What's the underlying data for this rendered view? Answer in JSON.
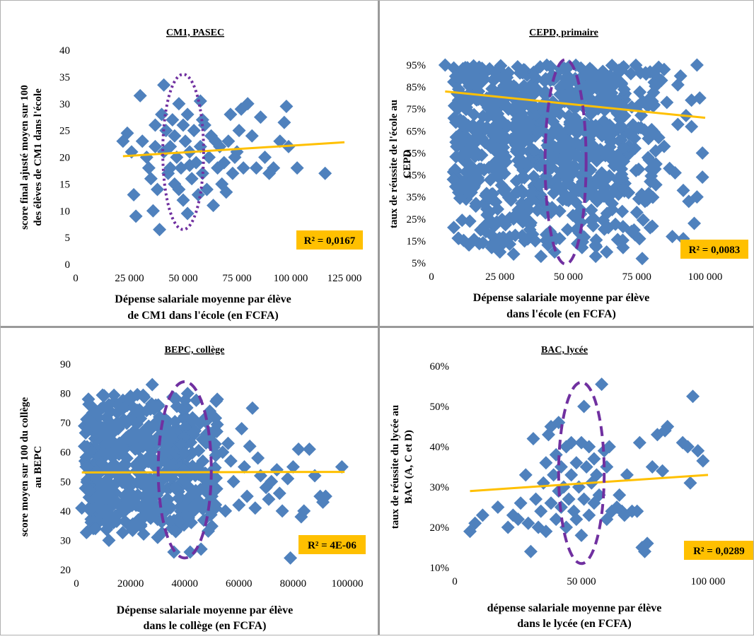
{
  "chart_data": [
    {
      "type": "scatter",
      "title": "CM1, PASEC",
      "ylabel_lines": [
        "score final ajusté moyen sur 100",
        "des élèves de CM1 dans l'école"
      ],
      "xlabel_lines": [
        "Dépense salariale moyenne par élève",
        "de CM1 dans l'école (en FCFA)"
      ],
      "xlim": [
        0,
        125000
      ],
      "ylim": [
        0,
        40
      ],
      "xticks": [
        0,
        25000,
        50000,
        75000,
        100000,
        125000
      ],
      "xtick_labels": [
        "0",
        "25 000",
        "50 000",
        "75 000",
        "100 000",
        "125 000"
      ],
      "yticks": [
        0,
        5,
        10,
        15,
        20,
        25,
        30,
        35,
        40
      ],
      "ytick_labels": [
        "0",
        "5",
        "10",
        "15",
        "20",
        "25",
        "30",
        "35",
        "40"
      ],
      "r2_label": "R² = 0,0167",
      "trendline": {
        "x": [
          22000,
          125000
        ],
        "y": [
          20.2,
          22.8
        ]
      },
      "ellipse": {
        "cx": 50000,
        "cy": 21,
        "rx": 9500,
        "ry": 14.5,
        "style": "dotted"
      },
      "marker_color": "#4f81bd",
      "trend_color": "#ffc000",
      "ellipse_color": "#7030a0",
      "points": [
        [
          22000,
          23
        ],
        [
          24000,
          24.5
        ],
        [
          26000,
          21
        ],
        [
          27000,
          13
        ],
        [
          28000,
          9
        ],
        [
          30000,
          31.5
        ],
        [
          31000,
          23
        ],
        [
          33000,
          20
        ],
        [
          34000,
          18
        ],
        [
          36000,
          10
        ],
        [
          37000,
          26
        ],
        [
          38000,
          14
        ],
        [
          39000,
          6.5
        ],
        [
          40000,
          28
        ],
        [
          41000,
          21
        ],
        [
          41000,
          33.5
        ],
        [
          42000,
          25
        ],
        [
          43000,
          17
        ],
        [
          44000,
          22
        ],
        [
          45000,
          27
        ],
        [
          46000,
          15
        ],
        [
          46000,
          24
        ],
        [
          47000,
          20
        ],
        [
          48000,
          30
        ],
        [
          49000,
          18
        ],
        [
          50000,
          26
        ],
        [
          50000,
          12
        ],
        [
          51000,
          23
        ],
        [
          52000,
          9.5
        ],
        [
          52000,
          28
        ],
        [
          53000,
          21
        ],
        [
          54000,
          16
        ],
        [
          55000,
          25
        ],
        [
          56000,
          19
        ],
        [
          57000,
          13
        ],
        [
          58000,
          30.5
        ],
        [
          58000,
          22
        ],
        [
          59000,
          17
        ],
        [
          60000,
          26
        ],
        [
          61000,
          14
        ],
        [
          62000,
          20
        ],
        [
          63000,
          24
        ],
        [
          64000,
          11
        ],
        [
          66000,
          18
        ],
        [
          67000,
          22
        ],
        [
          68000,
          15
        ],
        [
          69000,
          19
        ],
        [
          70000,
          13.5
        ],
        [
          71000,
          23
        ],
        [
          72000,
          28
        ],
        [
          73000,
          17
        ],
        [
          75000,
          21
        ],
        [
          76000,
          25
        ],
        [
          77000,
          29
        ],
        [
          78000,
          18
        ],
        [
          80000,
          30
        ],
        [
          82000,
          24
        ],
        [
          84000,
          18
        ],
        [
          86000,
          27.5
        ],
        [
          88000,
          20
        ],
        [
          90000,
          17
        ],
        [
          92000,
          18
        ],
        [
          95000,
          23
        ],
        [
          97000,
          26.5
        ],
        [
          98000,
          29.5
        ],
        [
          99000,
          22
        ],
        [
          103000,
          18
        ],
        [
          116000,
          17
        ],
        [
          35000,
          16
        ],
        [
          37000,
          22
        ],
        [
          44000,
          18
        ],
        [
          48000,
          14
        ],
        [
          53000,
          18.5
        ],
        [
          59000,
          27
        ],
        [
          65000,
          23
        ],
        [
          74000,
          20
        ]
      ]
    },
    {
      "type": "scatter",
      "title": "CEPD, primaire",
      "ylabel_lines": [
        "taux de réussite de l'école  au",
        "CEPD"
      ],
      "xlabel_lines": [
        "Dépense salariale moyenne par élève",
        "dans l'école  (en FCFA)"
      ],
      "xlim": [
        0,
        100000
      ],
      "ylim": [
        0.05,
        0.95
      ],
      "xticks": [
        0,
        25000,
        50000,
        75000,
        100000
      ],
      "xtick_labels": [
        "0",
        "25 000",
        "50 000",
        "75 000",
        "100 000"
      ],
      "yticks": [
        0.05,
        0.15,
        0.25,
        0.35,
        0.45,
        0.55,
        0.65,
        0.75,
        0.85,
        0.95
      ],
      "ytick_labels": [
        "5%",
        "15%",
        "25%",
        "35%",
        "45%",
        "55%",
        "65%",
        "75%",
        "85%",
        "95%"
      ],
      "r2_label": "R² = 0,0083",
      "trendline": {
        "x": [
          5000,
          100000
        ],
        "y": [
          0.83,
          0.71
        ]
      },
      "ellipse": {
        "cx": 49000,
        "cy": 0.51,
        "rx": 7500,
        "ry": 0.465,
        "style": "dashed"
      },
      "marker_color": "#4f81bd",
      "trend_color": "#ffc000",
      "ellipse_color": "#7030a0",
      "dense_region": {
        "x": [
          8000,
          82000
        ],
        "y": [
          0.12,
          0.95
        ]
      },
      "points": [
        [
          5000,
          0.95
        ],
        [
          8000,
          0.43
        ],
        [
          12000,
          0.55
        ],
        [
          14000,
          0.24
        ],
        [
          18000,
          0.2
        ],
        [
          22000,
          0.12
        ],
        [
          25000,
          0.1
        ],
        [
          30000,
          0.09
        ],
        [
          34000,
          0.15
        ],
        [
          40000,
          0.08
        ],
        [
          45000,
          0.1
        ],
        [
          55000,
          0.12
        ],
        [
          60000,
          0.08
        ],
        [
          64000,
          0.1
        ],
        [
          66000,
          0.32
        ],
        [
          68000,
          0.43
        ],
        [
          70000,
          0.12
        ],
        [
          72000,
          0.37
        ],
        [
          74000,
          0.2
        ],
        [
          75000,
          0.28
        ],
        [
          76000,
          0.16
        ],
        [
          77000,
          0.07
        ],
        [
          78000,
          0.33
        ],
        [
          80000,
          0.42
        ],
        [
          82000,
          0.5
        ],
        [
          83000,
          0.94
        ],
        [
          84000,
          0.88
        ],
        [
          85000,
          0.93
        ],
        [
          86000,
          0.78
        ],
        [
          87000,
          0.48
        ],
        [
          88000,
          0.17
        ],
        [
          89000,
          0.46
        ],
        [
          90000,
          0.68
        ],
        [
          90000,
          0.86
        ],
        [
          91000,
          0.9
        ],
        [
          92000,
          0.16
        ],
        [
          93000,
          0.72
        ],
        [
          94000,
          0.33
        ],
        [
          95000,
          0.79
        ],
        [
          96000,
          0.23
        ],
        [
          97000,
          0.95
        ],
        [
          98000,
          0.8
        ],
        [
          99000,
          0.55
        ],
        [
          99000,
          0.44
        ],
        [
          97000,
          0.35
        ],
        [
          95000,
          0.67
        ],
        [
          92000,
          0.38
        ],
        [
          85000,
          0.58
        ],
        [
          83000,
          0.62
        ]
      ]
    },
    {
      "type": "scatter",
      "title": "BEPC, collège",
      "ylabel_lines": [
        "score moyen sur 100 du collège",
        "au BEPC"
      ],
      "xlabel_lines": [
        "Dépense salariale moyenne par élève",
        "dans le collège (en FCFA)"
      ],
      "xlim": [
        0,
        100000
      ],
      "ylim": [
        20,
        90
      ],
      "xticks": [
        0,
        20000,
        40000,
        60000,
        80000,
        100000
      ],
      "xtick_labels": [
        "0",
        "20000",
        "40000",
        "60000",
        "80000",
        "100000"
      ],
      "yticks": [
        20,
        30,
        40,
        50,
        60,
        70,
        80,
        90
      ],
      "ytick_labels": [
        "20",
        "30",
        "40",
        "50",
        "60",
        "70",
        "80",
        "90"
      ],
      "r2_label": "R² = 4E-06",
      "trendline": {
        "x": [
          2000,
          99000
        ],
        "y": [
          53.1,
          53.3
        ]
      },
      "ellipse": {
        "cx": 40000,
        "cy": 54,
        "rx": 9800,
        "ry": 30,
        "style": "dashed"
      },
      "marker_color": "#4f81bd",
      "trend_color": "#ffc000",
      "ellipse_color": "#7030a0",
      "dense_region": {
        "x": [
          3000,
          52000
        ],
        "y": [
          32,
          80
        ]
      },
      "points": [
        [
          2000,
          41
        ],
        [
          3000,
          62
        ],
        [
          4000,
          55
        ],
        [
          5000,
          47
        ],
        [
          7000,
          34
        ],
        [
          8000,
          68
        ],
        [
          12000,
          30
        ],
        [
          15000,
          70
        ],
        [
          20000,
          78
        ],
        [
          28000,
          83
        ],
        [
          30000,
          31
        ],
        [
          36000,
          26
        ],
        [
          42000,
          26
        ],
        [
          46000,
          27
        ],
        [
          48000,
          72
        ],
        [
          50000,
          45
        ],
        [
          52000,
          78
        ],
        [
          54000,
          60
        ],
        [
          55000,
          40
        ],
        [
          56000,
          63
        ],
        [
          58000,
          50
        ],
        [
          60000,
          42
        ],
        [
          61000,
          68
        ],
        [
          62000,
          55
        ],
        [
          63000,
          45
        ],
        [
          64000,
          62
        ],
        [
          65000,
          75
        ],
        [
          66000,
          41
        ],
        [
          68000,
          52
        ],
        [
          70000,
          48
        ],
        [
          72000,
          50
        ],
        [
          74000,
          54
        ],
        [
          75000,
          46
        ],
        [
          76000,
          40
        ],
        [
          78000,
          51
        ],
        [
          79000,
          24
        ],
        [
          80000,
          55
        ],
        [
          82000,
          61
        ],
        [
          83000,
          38
        ],
        [
          84000,
          40
        ],
        [
          86000,
          61
        ],
        [
          88000,
          52
        ],
        [
          90000,
          45
        ],
        [
          91000,
          43
        ],
        [
          92000,
          45
        ],
        [
          98000,
          55
        ],
        [
          57000,
          57
        ],
        [
          67000,
          58
        ],
        [
          71000,
          44
        ]
      ]
    },
    {
      "type": "scatter",
      "title": "BAC, lycée",
      "ylabel_lines": [
        "taux de réussite du lycée au",
        "BAC (A,  C et D)"
      ],
      "xlabel_lines": [
        "dépense salariale moyenne par élève",
        "dans le lycée (en FCFA)"
      ],
      "xlim": [
        0,
        100000
      ],
      "ylim": [
        0.1,
        0.6
      ],
      "xticks": [
        0,
        50000,
        100000
      ],
      "xtick_labels": [
        "0",
        "50 000",
        "100 000"
      ],
      "yticks": [
        0.1,
        0.2,
        0.3,
        0.4,
        0.5,
        0.6
      ],
      "ytick_labels": [
        "10%",
        "20%",
        "30%",
        "40%",
        "50%",
        "60%"
      ],
      "r2_label": "R² = 0,0289",
      "trendline": {
        "x": [
          6000,
          100000
        ],
        "y": [
          0.29,
          0.33
        ]
      },
      "ellipse": {
        "cx": 50000,
        "cy": 0.335,
        "rx": 9000,
        "ry": 0.225,
        "style": "dashed"
      },
      "marker_color": "#4f81bd",
      "trend_color": "#ffc000",
      "ellipse_color": "#7030a0",
      "points": [
        [
          6000,
          0.19
        ],
        [
          8000,
          0.21
        ],
        [
          11000,
          0.23
        ],
        [
          17000,
          0.25
        ],
        [
          21000,
          0.2
        ],
        [
          23000,
          0.23
        ],
        [
          25000,
          0.22
        ],
        [
          26000,
          0.26
        ],
        [
          28000,
          0.33
        ],
        [
          29000,
          0.21
        ],
        [
          30000,
          0.14
        ],
        [
          31000,
          0.42
        ],
        [
          32000,
          0.27
        ],
        [
          33000,
          0.2
        ],
        [
          34000,
          0.24
        ],
        [
          35000,
          0.31
        ],
        [
          36000,
          0.36
        ],
        [
          36000,
          0.19
        ],
        [
          37000,
          0.43
        ],
        [
          38000,
          0.26
        ],
        [
          38000,
          0.45
        ],
        [
          39000,
          0.33
        ],
        [
          40000,
          0.22
        ],
        [
          40000,
          0.38
        ],
        [
          41000,
          0.29
        ],
        [
          41000,
          0.46
        ],
        [
          42000,
          0.25
        ],
        [
          42000,
          0.35
        ],
        [
          43000,
          0.3
        ],
        [
          44000,
          0.2
        ],
        [
          44000,
          0.4
        ],
        [
          45000,
          0.27
        ],
        [
          46000,
          0.33
        ],
        [
          46000,
          0.41
        ],
        [
          47000,
          0.24
        ],
        [
          48000,
          0.36
        ],
        [
          48000,
          0.22
        ],
        [
          49000,
          0.3
        ],
        [
          50000,
          0.41
        ],
        [
          50000,
          0.18
        ],
        [
          51000,
          0.5
        ],
        [
          51000,
          0.27
        ],
        [
          52000,
          0.35
        ],
        [
          53000,
          0.23
        ],
        [
          53000,
          0.4
        ],
        [
          54000,
          0.31
        ],
        [
          55000,
          0.37
        ],
        [
          55000,
          0.26
        ],
        [
          56000,
          0.33
        ],
        [
          57000,
          0.28
        ],
        [
          58000,
          0.555
        ],
        [
          59000,
          0.39
        ],
        [
          60000,
          0.22
        ],
        [
          60000,
          0.35
        ],
        [
          61000,
          0.4
        ],
        [
          62000,
          0.24
        ],
        [
          64000,
          0.25
        ],
        [
          65000,
          0.28
        ],
        [
          66000,
          0.24
        ],
        [
          67000,
          0.23
        ],
        [
          68000,
          0.33
        ],
        [
          70000,
          0.24
        ],
        [
          72000,
          0.24
        ],
        [
          73000,
          0.41
        ],
        [
          74000,
          0.15
        ],
        [
          75000,
          0.14
        ],
        [
          76000,
          0.16
        ],
        [
          78000,
          0.35
        ],
        [
          80000,
          0.43
        ],
        [
          82000,
          0.34
        ],
        [
          83000,
          0.44
        ],
        [
          84000,
          0.45
        ],
        [
          90000,
          0.41
        ],
        [
          92000,
          0.4
        ],
        [
          93000,
          0.31
        ],
        [
          94000,
          0.525
        ],
        [
          96000,
          0.39
        ],
        [
          98000,
          0.365
        ]
      ]
    }
  ]
}
